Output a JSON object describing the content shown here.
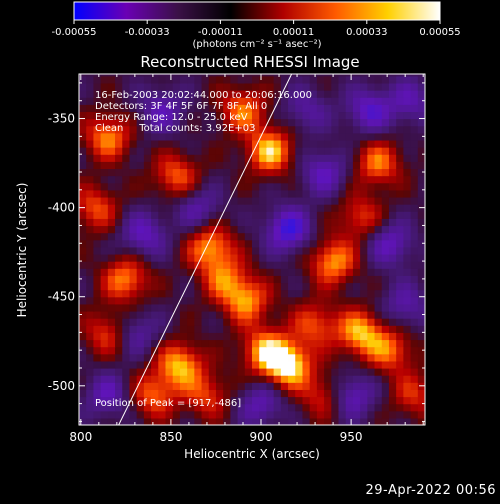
{
  "colorbar": {
    "ticks": [
      -0.00055,
      -0.00033,
      -0.00011,
      0.00011,
      0.00033,
      0.00055
    ],
    "tick_labels": [
      "-0.00055",
      "-0.00033",
      "-0.00011",
      "0.00011",
      "0.00033",
      "0.00055"
    ],
    "unit_label": "(photons cm⁻² s⁻¹ asec⁻²)",
    "range": [
      -0.00055,
      0.00055
    ],
    "colors": [
      "#0000ff",
      "#6a00b4",
      "#3a1046",
      "#000000",
      "#b00000",
      "#ff5a00",
      "#ffd000",
      "#ffffff"
    ]
  },
  "chart_data": {
    "type": "heatmap",
    "title": "Reconstructed RHESSI Image",
    "xlabel": "Heliocentric X (arcsec)",
    "ylabel": "Heliocentric Y (arcsec)",
    "xlim": [
      799,
      991
    ],
    "ylim": [
      -522,
      -325
    ],
    "xticks": [
      800,
      850,
      900,
      950
    ],
    "yticks": [
      -350,
      -400,
      -450,
      -500
    ],
    "annotations": [
      "16-Feb-2003 20:02:44.000 to 20:06:16.000",
      "Detectors: 3F 4F 5F 6F 7F 8F, All 0",
      "Energy Range: 12.0 - 25.0 keV",
      "Clean     Total counts: 3.92E+03"
    ],
    "peak_label": "Position of Peak = [917,-486]",
    "peak": [
      917,
      -486
    ],
    "limb_line": [
      [
        821,
        -522
      ],
      [
        917,
        -325
      ]
    ],
    "intensity_blobs": [
      {
        "x": 915,
        "y": -488,
        "a": 1.0
      },
      {
        "x": 902,
        "y": -480,
        "a": 0.75
      },
      {
        "x": 905,
        "y": -368,
        "a": 0.85
      },
      {
        "x": 890,
        "y": -345,
        "a": 0.65
      },
      {
        "x": 872,
        "y": -422,
        "a": 0.75
      },
      {
        "x": 853,
        "y": -382,
        "a": 0.6
      },
      {
        "x": 892,
        "y": -452,
        "a": 0.7
      },
      {
        "x": 880,
        "y": -440,
        "a": 0.55
      },
      {
        "x": 825,
        "y": -440,
        "a": 0.7
      },
      {
        "x": 815,
        "y": -470,
        "a": 0.55
      },
      {
        "x": 855,
        "y": -488,
        "a": 0.8
      },
      {
        "x": 840,
        "y": -505,
        "a": 0.6
      },
      {
        "x": 870,
        "y": -505,
        "a": 0.5
      },
      {
        "x": 965,
        "y": -375,
        "a": 0.65
      },
      {
        "x": 955,
        "y": -405,
        "a": 0.5
      },
      {
        "x": 940,
        "y": -430,
        "a": 0.75
      },
      {
        "x": 955,
        "y": -470,
        "a": 0.8
      },
      {
        "x": 972,
        "y": -480,
        "a": 0.6
      },
      {
        "x": 985,
        "y": -505,
        "a": 0.45
      },
      {
        "x": 935,
        "y": -505,
        "a": 0.5
      },
      {
        "x": 815,
        "y": -360,
        "a": 0.7
      },
      {
        "x": 808,
        "y": -400,
        "a": 0.55
      },
      {
        "x": 930,
        "y": -465,
        "a": 0.55
      },
      {
        "x": 960,
        "y": -345,
        "a": -0.6
      },
      {
        "x": 935,
        "y": -380,
        "a": -0.55
      },
      {
        "x": 915,
        "y": -412,
        "a": -0.75
      },
      {
        "x": 835,
        "y": -415,
        "a": -0.55
      },
      {
        "x": 815,
        "y": -505,
        "a": -0.5
      },
      {
        "x": 980,
        "y": -455,
        "a": -0.45
      },
      {
        "x": 950,
        "y": -505,
        "a": -0.6
      },
      {
        "x": 830,
        "y": -470,
        "a": -0.45
      },
      {
        "x": 865,
        "y": -400,
        "a": -0.45
      },
      {
        "x": 972,
        "y": -420,
        "a": -0.55
      },
      {
        "x": 845,
        "y": -345,
        "a": -0.5
      },
      {
        "x": 983,
        "y": -340,
        "a": -0.45
      },
      {
        "x": 900,
        "y": -510,
        "a": -0.5
      },
      {
        "x": 925,
        "y": -345,
        "a": -0.4
      }
    ]
  },
  "footer": {
    "timestamp": "29-Apr-2022 00:56"
  }
}
